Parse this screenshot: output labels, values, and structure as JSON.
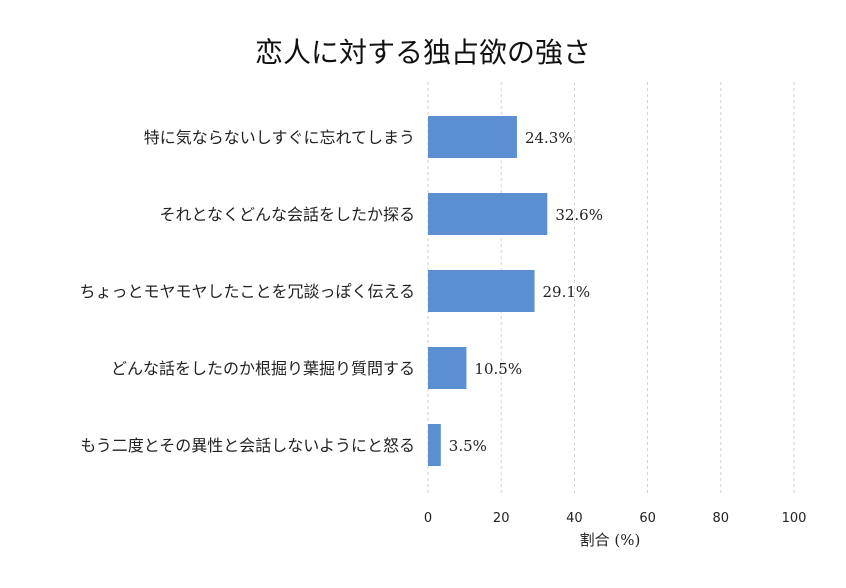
{
  "chart_data": {
    "type": "bar",
    "orientation": "horizontal",
    "title": "恋人に対する独占欲の強さ",
    "xlabel": "割合 (%)",
    "ylabel": "",
    "xlim": [
      0,
      100
    ],
    "x_ticks": [
      0,
      20,
      40,
      60,
      80,
      100
    ],
    "grid": "vertical-dashed",
    "bar_color": "#5b8fd1",
    "categories": [
      "特に気ならないしすぐに忘れてしまう",
      "それとなくどんな会話をしたか探る",
      "ちょっとモヤモヤしたことを冗談っぽく伝える",
      "どんな話をしたのか根掘り葉掘り質問する",
      "もう二度とその異性と会話しないようにと怒る"
    ],
    "values": [
      24.3,
      32.6,
      29.1,
      10.5,
      3.5
    ],
    "value_labels": [
      "24.3%",
      "32.6%",
      "29.1%",
      "10.5%",
      "3.5%"
    ]
  }
}
